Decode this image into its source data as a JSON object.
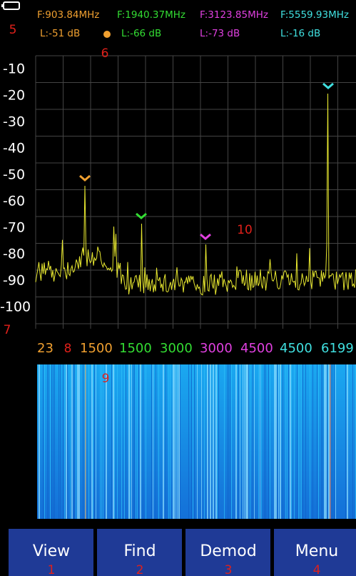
{
  "markers": [
    {
      "freq": "F:903.84MHz",
      "level": "L:-51 dB",
      "color": "#f0a030"
    },
    {
      "freq": "F:1940.37MHz",
      "level": "L:-66 dB",
      "color": "#33dd33"
    },
    {
      "freq": "F:3123.85MHz",
      "level": "L:-73 dB",
      "color": "#e040e0"
    },
    {
      "freq": "F:5559.93MHz",
      "level": "L:-16 dB",
      "color": "#40e0e0"
    }
  ],
  "level_axis": [
    "-10",
    "-20",
    "-30",
    "-40",
    "-50",
    "-60",
    "-70",
    "-80",
    "-90",
    "-100"
  ],
  "freq_axis": [
    {
      "label": "23",
      "color": "#f0a030"
    },
    {
      "label": "1500",
      "color": "#f0a030"
    },
    {
      "label": "1500",
      "color": "#33dd33"
    },
    {
      "label": "3000",
      "color": "#33dd33"
    },
    {
      "label": "3000",
      "color": "#e040e0"
    },
    {
      "label": "4500",
      "color": "#e040e0"
    },
    {
      "label": "4500",
      "color": "#40e0e0"
    },
    {
      "label": "6199",
      "color": "#40e0e0"
    }
  ],
  "buttons": [
    "View",
    "Find",
    "Demod",
    "Menu"
  ],
  "callouts": [
    "1",
    "2",
    "3",
    "4",
    "5",
    "6",
    "7",
    "8",
    "9",
    "10"
  ]
}
